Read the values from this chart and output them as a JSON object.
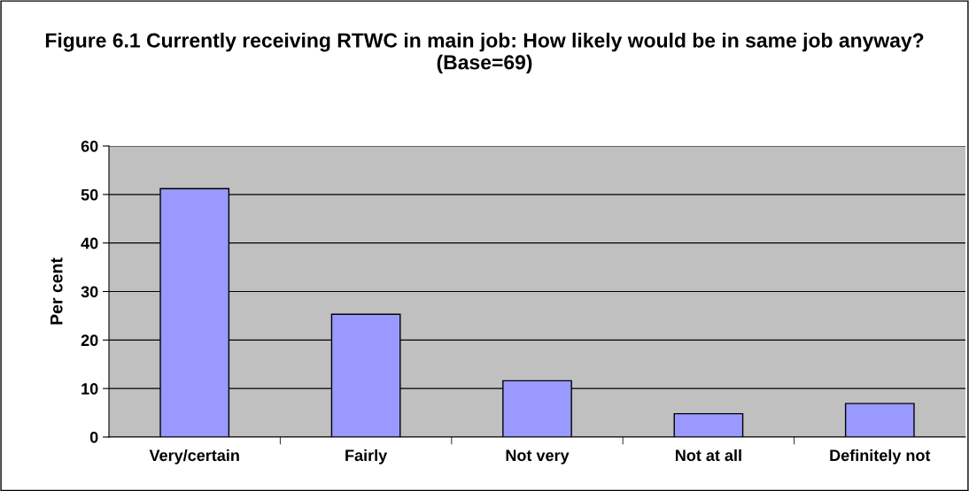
{
  "chart_data": {
    "type": "bar",
    "title": "Figure 6.1 Currently receiving RTWC in main job: How likely would be in same job anyway? (Base=69)",
    "ylabel": "Per cent",
    "categories": [
      "Very/certain",
      "Fairly",
      "Not very",
      "Not at all",
      "Definitely not"
    ],
    "values": [
      51.2,
      25.3,
      11.6,
      4.8,
      6.9
    ],
    "color": "#9999ff",
    "ylim": [
      0,
      60
    ],
    "yticks": [
      0,
      10,
      20,
      30,
      40,
      50,
      60
    ],
    "grid": "y"
  }
}
